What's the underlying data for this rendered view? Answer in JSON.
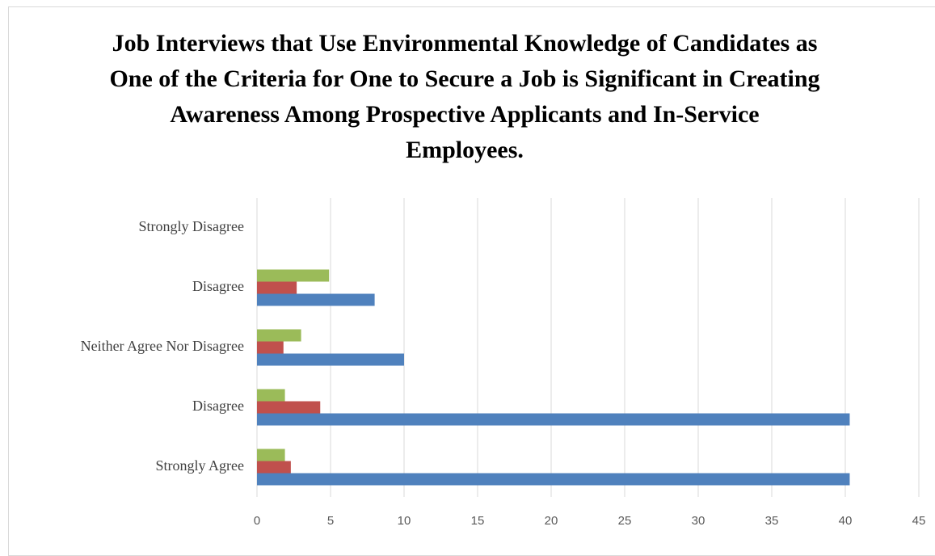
{
  "chart_data": {
    "type": "hbar",
    "title": "Job Interviews that Use Environmental Knowledge of Candidates as One of the Criteria for One to Secure a Job is Significant in Creating Awareness Among Prospective Applicants and In-Service Employees.",
    "categories": [
      "Strongly Disagree",
      "Disagree",
      "Neither Agree Nor Disagree",
      "Disagree",
      "Strongly Agree"
    ],
    "series": [
      {
        "color": "#4f81bd",
        "values": [
          0,
          8.0,
          10.0,
          40.3,
          40.3
        ]
      },
      {
        "color": "#c0504d",
        "values": [
          0,
          2.7,
          1.8,
          4.3,
          2.3
        ]
      },
      {
        "color": "#9bbb59",
        "values": [
          0,
          4.9,
          3.0,
          1.9,
          1.9
        ]
      }
    ],
    "xlim": [
      0,
      45
    ],
    "xticks": [
      0,
      5,
      10,
      15,
      20,
      25,
      30,
      35,
      40,
      45
    ],
    "grid": true
  }
}
